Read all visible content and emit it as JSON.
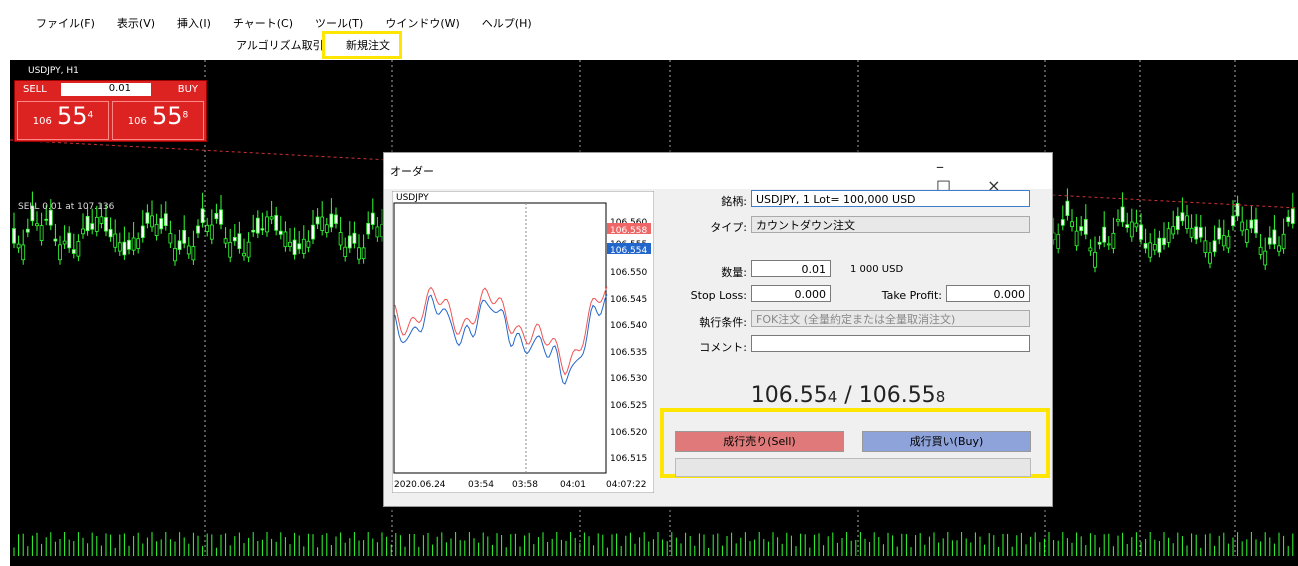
{
  "menu": [
    "ファイル(F)",
    "表示(V)",
    "挿入(I)",
    "チャート(C)",
    "ツール(T)",
    "ウインドウ(W)",
    "ヘルプ(H)"
  ],
  "toolbar": {
    "algo": "アルゴリズム取引",
    "new_order": "新規注文"
  },
  "chart": {
    "symbol": "USDJPY, H1",
    "sell": "SELL",
    "buy": "BUY",
    "lot": "0.01",
    "bid": {
      "big": "106",
      "mid": "55",
      "small": "4"
    },
    "ask": {
      "big": "106",
      "mid": "55",
      "small": "8"
    },
    "order_line": "SELL 0.01 at 107.136"
  },
  "dialog": {
    "title": "オーダー",
    "mini_chart": {
      "symbol": "USDJPY",
      "price_labels": [
        "106.560",
        "106.558",
        "106.555",
        "106.554",
        "106.550",
        "106.545",
        "106.540",
        "106.535",
        "106.530",
        "106.525",
        "106.520",
        "106.515"
      ],
      "time_labels": [
        "2020.06.24",
        "03:54",
        "03:58",
        "04:01",
        "04:07:22"
      ]
    },
    "form": {
      "symbol_label": "銘柄:",
      "symbol": "USDJPY, 1 Lot= 100,000 USD",
      "type_label": "タイプ:",
      "type": "カウントダウン注文",
      "volume_label": "数量:",
      "volume": "0.01",
      "volume_note": "1 000 USD",
      "sl_label": "Stop Loss:",
      "sl": "0.000",
      "tp_label": "Take Profit:",
      "tp": "0.000",
      "exec_label": "執行条件:",
      "exec": "FOK注文 (全量約定または全量取消注文)",
      "comment_label": "コメント:"
    },
    "price": {
      "bid_main": "106.55",
      "bid_small": "4",
      "sep": " / ",
      "ask_main": "106.55",
      "ask_small": "8"
    },
    "sell_button": "成行売り(Sell)",
    "buy_button": "成行買い(Buy)"
  }
}
